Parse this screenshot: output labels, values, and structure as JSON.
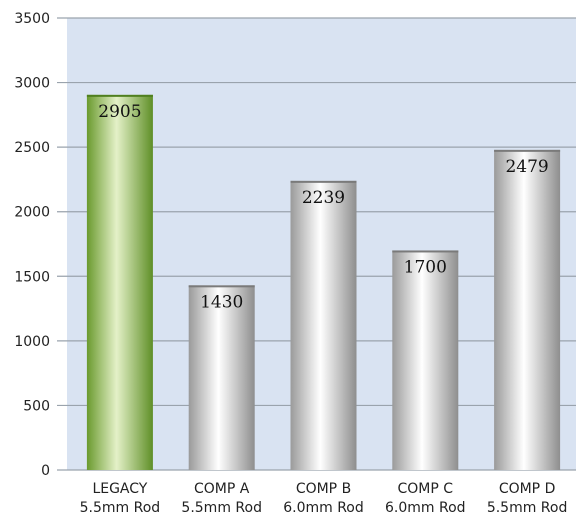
{
  "chart_data": {
    "type": "bar",
    "categories": [
      [
        "LEGACY",
        "5.5mm Rod"
      ],
      [
        "COMP A",
        "5.5mm Rod"
      ],
      [
        "COMP B",
        "6.0mm Rod"
      ],
      [
        "COMP C",
        "6.0mm Rod"
      ],
      [
        "COMP D",
        "5.5mm Rod"
      ]
    ],
    "values": [
      2905,
      1430,
      2239,
      1700,
      2479
    ],
    "data_labels": [
      "2905",
      "1430",
      "2239",
      "1700",
      "2479"
    ],
    "ylim": [
      0,
      3500
    ],
    "yticks": [
      "0",
      "500",
      "1000",
      "1500",
      "2000",
      "2500",
      "3000",
      "3500"
    ],
    "grid": true,
    "colors": {
      "plot_background": "#d9e3f2",
      "gridline": "#9aa3ad",
      "highlight_bar": "#8cbf45",
      "bar": "#c9c9c9"
    },
    "highlight_index": 0
  }
}
